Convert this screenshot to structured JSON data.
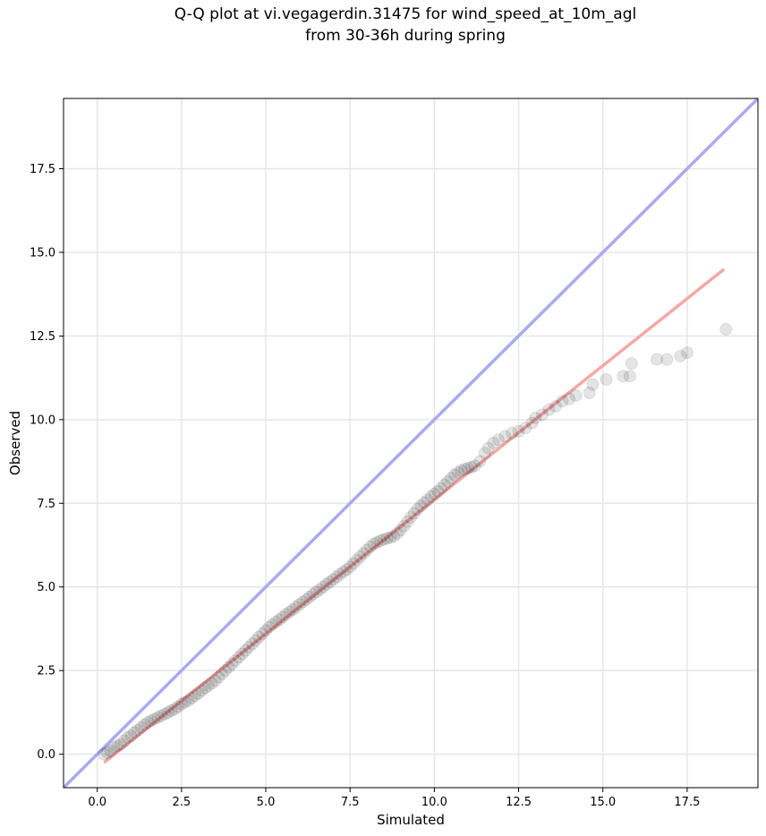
{
  "title_line1": "Q-Q plot at vi.vegagerdin.31475 for wind_speed_at_10m_agl",
  "title_line2": "from 30-36h during spring",
  "chart_data": {
    "type": "scatter",
    "title": "Q-Q plot at vi.vegagerdin.31475 for wind_speed_at_10m_agl from 30-36h during spring",
    "xlabel": "Simulated",
    "ylabel": "Observed",
    "xlim": [
      -1.0,
      19.6
    ],
    "ylim": [
      -1.0,
      19.6
    ],
    "xticks": [
      0.0,
      2.5,
      5.0,
      7.5,
      10.0,
      12.5,
      15.0,
      17.5
    ],
    "yticks": [
      0.0,
      2.5,
      5.0,
      7.5,
      10.0,
      12.5,
      15.0,
      17.5
    ],
    "xtick_labels": [
      "0.0",
      "2.5",
      "5.0",
      "7.5",
      "10.0",
      "12.5",
      "15.0",
      "17.5"
    ],
    "ytick_labels": [
      "0.0",
      "2.5",
      "5.0",
      "7.5",
      "10.0",
      "12.5",
      "15.0",
      "17.5"
    ],
    "grid": true,
    "identity_line": {
      "color": "#aaaaf0"
    },
    "fit_line": {
      "x": [
        0.2,
        18.6
      ],
      "y": [
        -0.25,
        14.5
      ],
      "color": "#f4a8a8"
    },
    "point_color": "#000000",
    "points": [
      [
        0.2,
        0.0
      ],
      [
        0.3,
        0.05
      ],
      [
        0.4,
        0.1
      ],
      [
        0.5,
        0.2
      ],
      [
        0.6,
        0.25
      ],
      [
        0.7,
        0.3
      ],
      [
        0.8,
        0.4
      ],
      [
        0.9,
        0.5
      ],
      [
        1.0,
        0.55
      ],
      [
        1.1,
        0.65
      ],
      [
        1.2,
        0.72
      ],
      [
        1.3,
        0.8
      ],
      [
        1.4,
        0.88
      ],
      [
        1.5,
        0.95
      ],
      [
        1.6,
        1.0
      ],
      [
        1.7,
        1.05
      ],
      [
        1.8,
        1.1
      ],
      [
        1.9,
        1.15
      ],
      [
        2.0,
        1.2
      ],
      [
        2.1,
        1.25
      ],
      [
        2.2,
        1.3
      ],
      [
        2.3,
        1.35
      ],
      [
        2.4,
        1.42
      ],
      [
        2.5,
        1.5
      ],
      [
        2.6,
        1.55
      ],
      [
        2.7,
        1.6
      ],
      [
        2.8,
        1.68
      ],
      [
        2.9,
        1.75
      ],
      [
        3.0,
        1.82
      ],
      [
        3.1,
        1.9
      ],
      [
        3.2,
        1.98
      ],
      [
        3.3,
        2.05
      ],
      [
        3.4,
        2.12
      ],
      [
        3.5,
        2.2
      ],
      [
        3.6,
        2.3
      ],
      [
        3.7,
        2.4
      ],
      [
        3.8,
        2.5
      ],
      [
        3.9,
        2.6
      ],
      [
        4.0,
        2.7
      ],
      [
        4.1,
        2.8
      ],
      [
        4.2,
        2.9
      ],
      [
        4.3,
        3.0
      ],
      [
        4.4,
        3.1
      ],
      [
        4.5,
        3.2
      ],
      [
        4.6,
        3.3
      ],
      [
        4.7,
        3.4
      ],
      [
        4.8,
        3.5
      ],
      [
        4.9,
        3.6
      ],
      [
        5.0,
        3.7
      ],
      [
        5.1,
        3.8
      ],
      [
        5.2,
        3.88
      ],
      [
        5.3,
        3.95
      ],
      [
        5.4,
        4.02
      ],
      [
        5.5,
        4.1
      ],
      [
        5.6,
        4.18
      ],
      [
        5.7,
        4.25
      ],
      [
        5.8,
        4.32
      ],
      [
        5.9,
        4.4
      ],
      [
        6.0,
        4.48
      ],
      [
        6.1,
        4.55
      ],
      [
        6.2,
        4.62
      ],
      [
        6.3,
        4.7
      ],
      [
        6.4,
        4.78
      ],
      [
        6.5,
        4.85
      ],
      [
        6.6,
        4.92
      ],
      [
        6.7,
        5.0
      ],
      [
        6.8,
        5.08
      ],
      [
        6.9,
        5.15
      ],
      [
        7.0,
        5.22
      ],
      [
        7.1,
        5.3
      ],
      [
        7.2,
        5.38
      ],
      [
        7.3,
        5.45
      ],
      [
        7.4,
        5.52
      ],
      [
        7.5,
        5.6
      ],
      [
        7.6,
        5.7
      ],
      [
        7.7,
        5.8
      ],
      [
        7.8,
        5.9
      ],
      [
        7.9,
        6.0
      ],
      [
        8.0,
        6.1
      ],
      [
        8.1,
        6.2
      ],
      [
        8.2,
        6.28
      ],
      [
        8.3,
        6.33
      ],
      [
        8.4,
        6.38
      ],
      [
        8.5,
        6.42
      ],
      [
        8.6,
        6.45
      ],
      [
        8.7,
        6.48
      ],
      [
        8.8,
        6.52
      ],
      [
        8.9,
        6.6
      ],
      [
        9.0,
        6.7
      ],
      [
        9.1,
        6.82
      ],
      [
        9.2,
        6.95
      ],
      [
        9.3,
        7.08
      ],
      [
        9.4,
        7.2
      ],
      [
        9.5,
        7.32
      ],
      [
        9.6,
        7.42
      ],
      [
        9.7,
        7.52
      ],
      [
        9.8,
        7.6
      ],
      [
        9.9,
        7.7
      ],
      [
        10.0,
        7.78
      ],
      [
        10.1,
        7.86
      ],
      [
        10.2,
        7.95
      ],
      [
        10.3,
        8.05
      ],
      [
        10.4,
        8.15
      ],
      [
        10.5,
        8.25
      ],
      [
        10.6,
        8.35
      ],
      [
        10.7,
        8.42
      ],
      [
        10.8,
        8.48
      ],
      [
        10.9,
        8.52
      ],
      [
        11.0,
        8.55
      ],
      [
        11.1,
        8.58
      ],
      [
        11.2,
        8.62
      ],
      [
        11.35,
        8.75
      ],
      [
        11.5,
        9.0
      ],
      [
        11.6,
        9.15
      ],
      [
        11.75,
        9.3
      ],
      [
        11.9,
        9.4
      ],
      [
        12.1,
        9.5
      ],
      [
        12.3,
        9.6
      ],
      [
        12.5,
        9.65
      ],
      [
        12.7,
        9.75
      ],
      [
        12.9,
        9.9
      ],
      [
        13.0,
        10.05
      ],
      [
        13.2,
        10.15
      ],
      [
        13.4,
        10.3
      ],
      [
        13.6,
        10.4
      ],
      [
        13.8,
        10.55
      ],
      [
        14.0,
        10.62
      ],
      [
        14.2,
        10.72
      ],
      [
        14.6,
        10.8
      ],
      [
        14.7,
        11.05
      ],
      [
        15.1,
        11.2
      ],
      [
        15.6,
        11.3
      ],
      [
        15.8,
        11.3
      ],
      [
        15.85,
        11.68
      ],
      [
        16.6,
        11.8
      ],
      [
        16.9,
        11.8
      ],
      [
        17.3,
        11.9
      ],
      [
        17.5,
        12.0
      ],
      [
        18.65,
        12.7
      ]
    ]
  }
}
